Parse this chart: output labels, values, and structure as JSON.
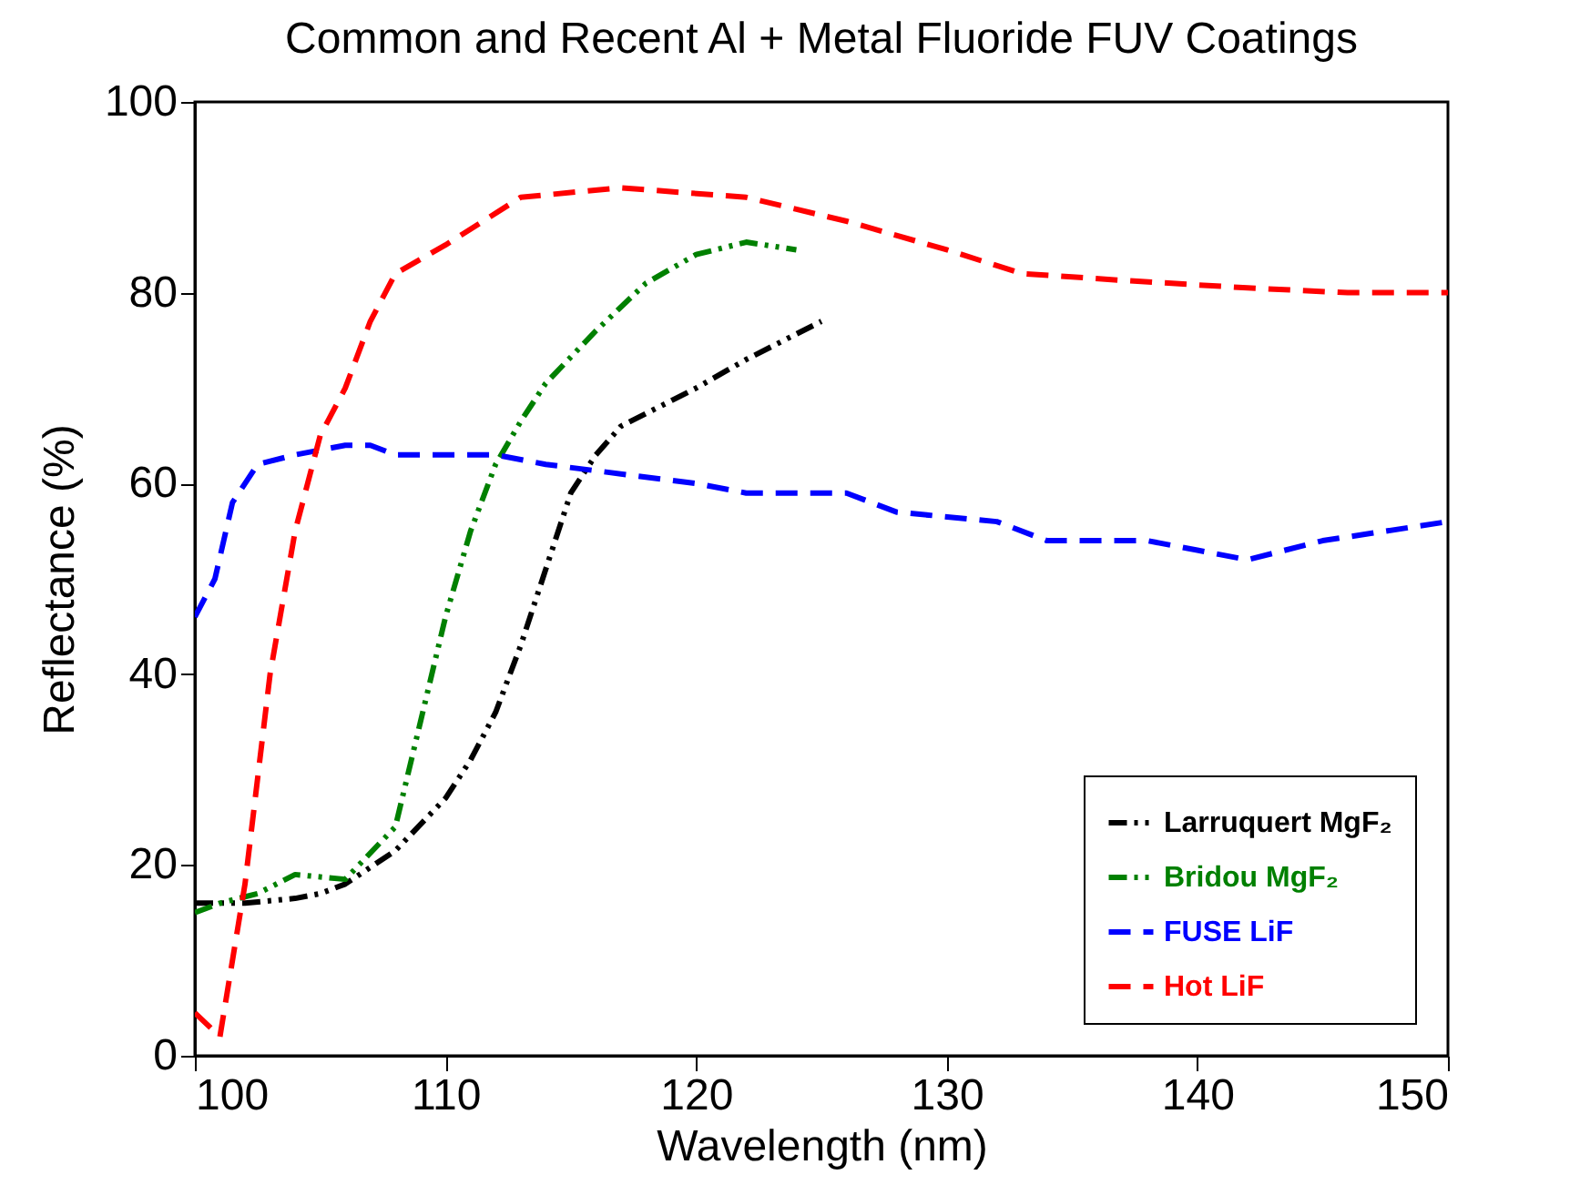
{
  "chart_data": {
    "type": "line",
    "title": "Common and Recent Al + Metal Fluoride FUV Coatings",
    "xlabel": "Wavelength (nm)",
    "ylabel": "Reflectance (%)",
    "xlim": [
      100,
      150
    ],
    "xticks": [
      100,
      110,
      120,
      130,
      140,
      150
    ],
    "ylim": [
      0,
      100
    ],
    "yticks": [
      0,
      20,
      40,
      60,
      80,
      100
    ],
    "grid": false,
    "legend": "bottom right",
    "marker": "none",
    "series": [
      {
        "name": "Larruquert MgF₂",
        "color": "#000000",
        "line_style": "dotted",
        "x": [
          100,
          102,
          104,
          105,
          106,
          108,
          110,
          111,
          112,
          113,
          114,
          115,
          116,
          117,
          120,
          122,
          125
        ],
        "values": [
          16,
          16,
          16.5,
          17,
          18,
          21.5,
          27,
          31,
          36,
          43,
          51,
          59,
          63,
          66,
          70,
          73,
          77
        ]
      },
      {
        "name": "Bridou MgF₂",
        "color": "#008000",
        "line_style": "dotted",
        "x": [
          100,
          101,
          102.5,
          104,
          106,
          108,
          109,
          110,
          111,
          112,
          113,
          114,
          116,
          118,
          120,
          122,
          124
        ],
        "values": [
          15,
          16,
          17,
          19,
          18.5,
          24,
          35,
          46,
          55,
          62,
          66.5,
          70.5,
          76,
          81,
          84,
          85.3,
          84.5
        ]
      },
      {
        "name": "FUSE LiF",
        "color": "#0000ff",
        "line_style": "dashed",
        "x": [
          100,
          100.8,
          101.5,
          102.5,
          104,
          106,
          107,
          108,
          112,
          114,
          120,
          122,
          126,
          128,
          132,
          134,
          138,
          140,
          142,
          145,
          150
        ],
        "values": [
          46,
          50,
          58,
          62,
          63,
          64,
          64,
          63,
          63,
          62,
          60,
          59,
          59,
          57,
          56,
          54,
          54,
          53,
          52,
          54,
          56
        ]
      },
      {
        "name": "Hot LiF",
        "color": "#ff0000",
        "line_style": "dashed",
        "x": [
          100,
          101,
          102,
          103,
          104,
          105,
          106,
          107,
          108,
          110,
          113,
          117,
          122,
          126,
          130,
          133,
          137,
          142,
          146,
          150
        ],
        "values": [
          4.5,
          2,
          18,
          40,
          55,
          65,
          70,
          77,
          82,
          85,
          90,
          91,
          90,
          87.5,
          84.5,
          82,
          81.3,
          80.5,
          80,
          80
        ]
      }
    ]
  }
}
